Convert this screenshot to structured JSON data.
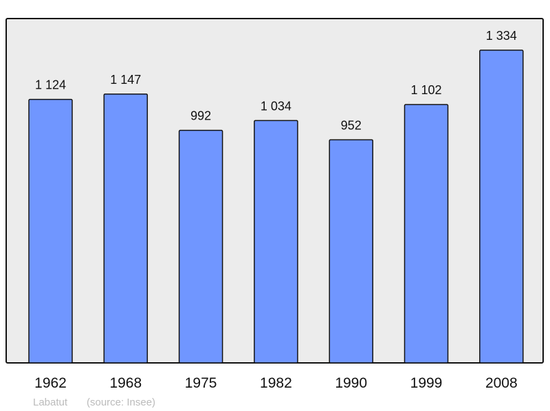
{
  "chart_data": {
    "type": "bar",
    "categories": [
      "1962",
      "1968",
      "1975",
      "1982",
      "1990",
      "1999",
      "2008"
    ],
    "values": [
      1124,
      1147,
      992,
      1034,
      952,
      1102,
      1334
    ],
    "data_labels": [
      "1 124",
      "1 147",
      "992",
      "1 034",
      "952",
      "1 102",
      "1 334"
    ],
    "title": "",
    "xlabel": "",
    "ylabel": "",
    "ylim": [
      0,
      1469
    ],
    "grid": false,
    "bar_color": "#7096ff",
    "plot_background": "#ececec"
  },
  "footer": {
    "place": "Labatut",
    "source": "(source: Insee)"
  }
}
